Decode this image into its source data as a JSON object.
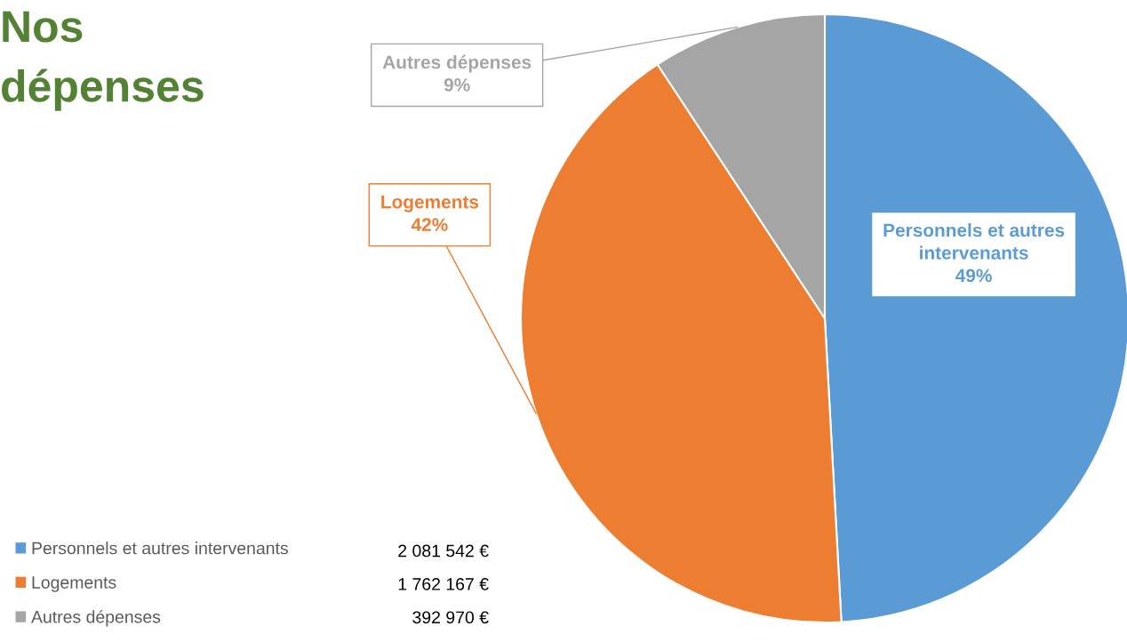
{
  "chart_data": {
    "type": "pie",
    "title": "Nos\ndépenses",
    "categories": [
      "Personnels et autres intervenants",
      "Logements",
      "Autres dépenses"
    ],
    "values": [
      2081542,
      1762167,
      392970
    ],
    "colors": [
      "#5b9bd5",
      "#ed7d31",
      "#a5a5a5"
    ],
    "value_labels": [
      "2 081 542 €",
      "1 762 167 €",
      "392 970 €"
    ],
    "annotations": [
      {
        "text": "49%",
        "x": "Personnels et autres intervenants"
      },
      {
        "text": "42%",
        "x": "Logements"
      },
      {
        "text": "9%",
        "x": "Autres dépenses"
      }
    ],
    "legend": "bottom left"
  }
}
